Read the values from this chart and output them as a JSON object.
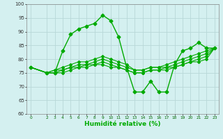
{
  "title": "",
  "xlabel": "Humidité relative (%)",
  "ylabel": "",
  "bg_color": "#d4f0f0",
  "grid_color": "#b8d8d8",
  "line_color": "#00aa00",
  "xlim": [
    -0.5,
    23.5
  ],
  "ylim": [
    60,
    100
  ],
  "yticks": [
    60,
    65,
    70,
    75,
    80,
    85,
    90,
    95,
    100
  ],
  "xticks": [
    0,
    2,
    3,
    4,
    5,
    6,
    7,
    8,
    9,
    10,
    11,
    12,
    13,
    14,
    15,
    16,
    17,
    18,
    19,
    20,
    21,
    22,
    23
  ],
  "series": [
    {
      "x": [
        0,
        2,
        3,
        4,
        5,
        6,
        7,
        8,
        9,
        10,
        11,
        12,
        13,
        14,
        15,
        16,
        17,
        18,
        19,
        20,
        21,
        22,
        23
      ],
      "y": [
        77,
        75,
        75,
        83,
        89,
        91,
        92,
        93,
        96,
        94,
        88,
        77,
        68,
        68,
        72,
        68,
        68,
        78,
        83,
        84,
        86,
        84,
        84
      ],
      "marker": "D",
      "markersize": 2.5,
      "linewidth": 1.0
    },
    {
      "x": [
        0,
        2,
        3,
        4,
        5,
        6,
        7,
        8,
        9,
        10,
        11,
        12,
        13,
        14,
        15,
        16,
        17,
        18,
        19,
        20,
        21,
        22,
        23
      ],
      "y": [
        77,
        75,
        76,
        77,
        78,
        79,
        79,
        80,
        81,
        80,
        79,
        78,
        76,
        76,
        77,
        77,
        78,
        79,
        80,
        81,
        82,
        83,
        84
      ],
      "marker": "D",
      "markersize": 2.0,
      "linewidth": 0.8
    },
    {
      "x": [
        0,
        2,
        3,
        4,
        5,
        6,
        7,
        8,
        9,
        10,
        11,
        12,
        13,
        14,
        15,
        16,
        17,
        18,
        19,
        20,
        21,
        22,
        23
      ],
      "y": [
        77,
        75,
        76,
        76,
        77,
        78,
        78,
        79,
        80,
        79,
        78,
        77,
        76,
        76,
        77,
        77,
        77,
        78,
        79,
        80,
        81,
        82,
        84
      ],
      "marker": "D",
      "markersize": 2.0,
      "linewidth": 0.8
    },
    {
      "x": [
        0,
        2,
        3,
        4,
        5,
        6,
        7,
        8,
        9,
        10,
        11,
        12,
        13,
        14,
        15,
        16,
        17,
        18,
        19,
        20,
        21,
        22,
        23
      ],
      "y": [
        77,
        75,
        75,
        76,
        77,
        77,
        78,
        78,
        79,
        78,
        77,
        76,
        75,
        75,
        76,
        76,
        77,
        77,
        78,
        79,
        80,
        81,
        84
      ],
      "marker": "D",
      "markersize": 2.0,
      "linewidth": 0.8
    },
    {
      "x": [
        0,
        2,
        3,
        4,
        5,
        6,
        7,
        8,
        9,
        10,
        11,
        12,
        13,
        14,
        15,
        16,
        17,
        18,
        19,
        20,
        21,
        22,
        23
      ],
      "y": [
        77,
        75,
        75,
        75,
        76,
        77,
        77,
        78,
        78,
        77,
        77,
        76,
        75,
        75,
        76,
        76,
        76,
        77,
        78,
        79,
        79,
        80,
        84
      ],
      "marker": "D",
      "markersize": 2.0,
      "linewidth": 0.8
    }
  ]
}
